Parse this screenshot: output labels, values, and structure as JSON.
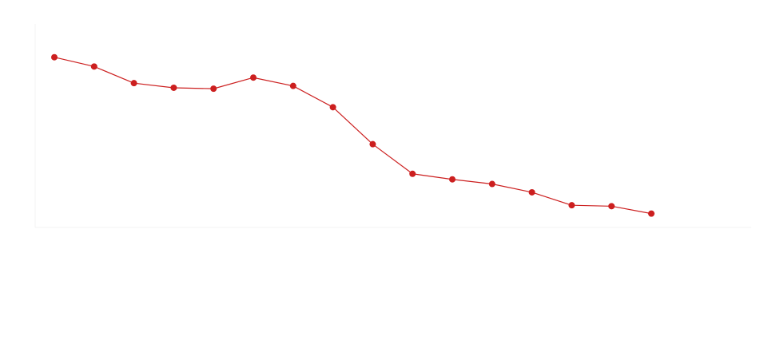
{
  "chart_data": {
    "type": "line",
    "title": "",
    "ylabel": "",
    "xlabel": "",
    "ylim": [
      0,
      110
    ],
    "x": [
      1,
      2,
      3,
      4,
      5,
      6,
      7,
      8,
      9,
      10,
      11,
      12,
      13,
      14,
      15,
      16
    ],
    "series": [
      {
        "color": "#cc1f1f",
        "values": [
          92,
          87,
          78,
          75.5,
          75,
          81,
          76.5,
          65,
          45,
          29,
          26,
          23.5,
          19,
          12,
          11.5,
          7.5
        ]
      }
    ],
    "grid": false
  },
  "colors": {
    "line": "#cc1f1f",
    "marker": "#cc1f1f"
  }
}
